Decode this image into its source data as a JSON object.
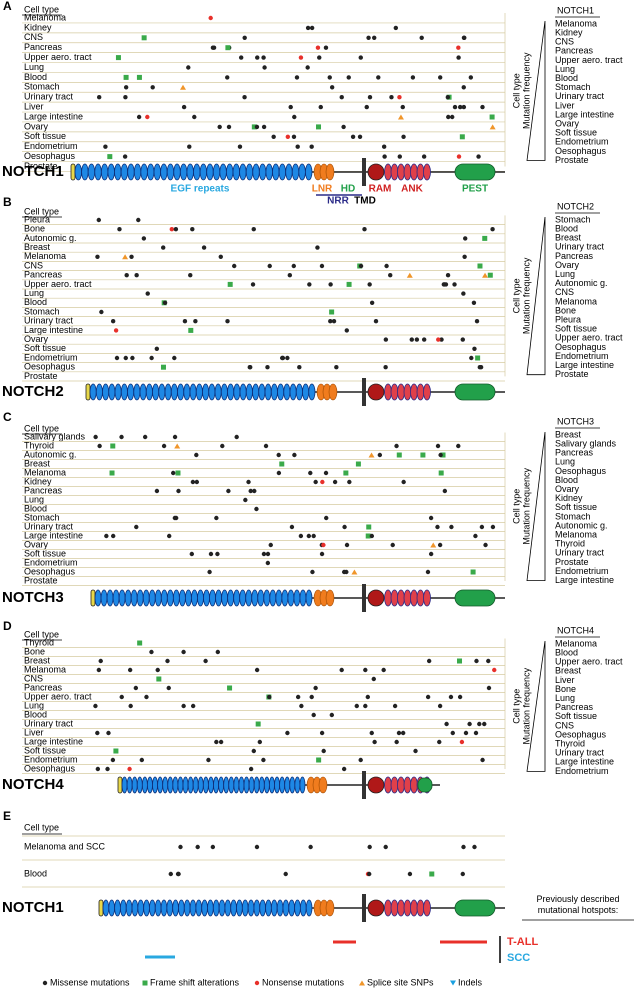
{
  "panels": [
    {
      "letter": "A",
      "cell_type_header": "Cell type",
      "rows": [
        "Melanoma",
        "Kidney",
        "CNS",
        "Pancreas",
        "Upper aero. tract",
        "Lung",
        "Blood",
        "Stomach",
        "Urinary tract",
        "Liver",
        "Large intestine",
        "Ovary",
        "Soft tissue",
        "Endometrium",
        "Oesophagus",
        "Prostate"
      ],
      "protein": "NOTCH1",
      "ranking_title": "NOTCH1",
      "ranking": [
        "Melanoma",
        "Kidney",
        "CNS",
        "Pancreas",
        "Upper aero. tract",
        "Lung",
        "Blood",
        "Stomach",
        "Urinary tract",
        "Liver",
        "Large intestine",
        "Ovary",
        "Soft tissue",
        "Endometrium",
        "Oesophagus",
        "Prostate"
      ],
      "axis_labels": [
        "Cell type",
        "Mutation frequency"
      ]
    },
    {
      "letter": "B",
      "cell_type_header": "Cell type",
      "rows": [
        "Pleura",
        "Bone",
        "Autonomic g.",
        "Breast",
        "Melanoma",
        "CNS",
        "Pancreas",
        "Upper aero. tract",
        "Lung",
        "Blood",
        "Stomach",
        "Urinary tract",
        "Large intestine",
        "Ovary",
        "Soft tissue",
        "Endometrium",
        "Oesophagus",
        "Prostate"
      ],
      "protein": "NOTCH2",
      "ranking_title": "NOTCH2",
      "ranking": [
        "Stomach",
        "Blood",
        "Breast",
        "Urinary tract",
        "Pancreas",
        "Ovary",
        "Lung",
        "Autonomic g.",
        "CNS",
        "Melanoma",
        "Bone",
        "Pleura",
        "Soft tissue",
        "Upper aero. tract",
        "Oesophagus",
        "Endometrium",
        "Large intestine",
        "Prostate"
      ],
      "axis_labels": [
        "Cell type",
        "Mutation frequency"
      ]
    },
    {
      "letter": "C",
      "cell_type_header": "Cell type",
      "rows": [
        "Salivary glands",
        "Thyroid",
        "Autonomic g.",
        "Breast",
        "Melanoma",
        "Kidney",
        "Pancreas",
        "Lung",
        "Blood",
        "Stomach",
        "Urinary tract",
        "Large intestine",
        "Ovary",
        "Soft tissue",
        "Endometrium",
        "Oesophagus",
        "Prostate"
      ],
      "protein": "NOTCH3",
      "ranking_title": "NOTCH3",
      "ranking": [
        "Breast",
        "Salivary glands",
        "Pancreas",
        "Lung",
        "Oesophagus",
        "Blood",
        "Ovary",
        "Kidney",
        "Soft tissue",
        "Stomach",
        "Autonomic g.",
        "Melanoma",
        "Thyroid",
        "Urinary tract",
        "Prostate",
        "Endometrium",
        "Large intestine"
      ],
      "axis_labels": [
        "Cell type",
        "Mutation frequency"
      ]
    },
    {
      "letter": "D",
      "cell_type_header": "Cell type",
      "rows": [
        "Thyroid",
        "Bone",
        "Breast",
        "Melanoma",
        "CNS",
        "Pancreas",
        "Upper aero. tract",
        "Lung",
        "Blood",
        "Urinary tract",
        "Liver",
        "Large intestine",
        "Soft tissue",
        "Endometrium",
        "Oesophagus"
      ],
      "protein": "NOTCH4",
      "ranking_title": "NOTCH4",
      "ranking": [
        "Melanoma",
        "Blood",
        "Upper aero. tract",
        "Breast",
        "Liver",
        "Bone",
        "Lung",
        "Pancreas",
        "Soft tissue",
        "CNS",
        "Oesophagus",
        "Thyroid",
        "Urinary tract",
        "Large intestine",
        "Endometrium"
      ],
      "axis_labels": [
        "Cell type",
        "Mutation frequency"
      ]
    }
  ],
  "domains": {
    "egf": "EGF repeats",
    "lnr": "LNR",
    "hd": "HD",
    "ram": "RAM",
    "ank": "ANK",
    "pest": "PEST",
    "nrr": "NRR",
    "tmd": "TMD"
  },
  "panel_e": {
    "letter": "E",
    "cell_type_header": "Cell type",
    "rows": [
      "Melanoma and SCC",
      "Blood"
    ],
    "protein": "NOTCH1",
    "hotspot_note": "Previously described mutational hotspots:",
    "hotspots": [
      "T-ALL",
      "SCC"
    ]
  },
  "legend": [
    "Missense mutations",
    "Frame shift alterations",
    "Nonsense mutations",
    "Splice site SNPs",
    "Indels"
  ]
}
